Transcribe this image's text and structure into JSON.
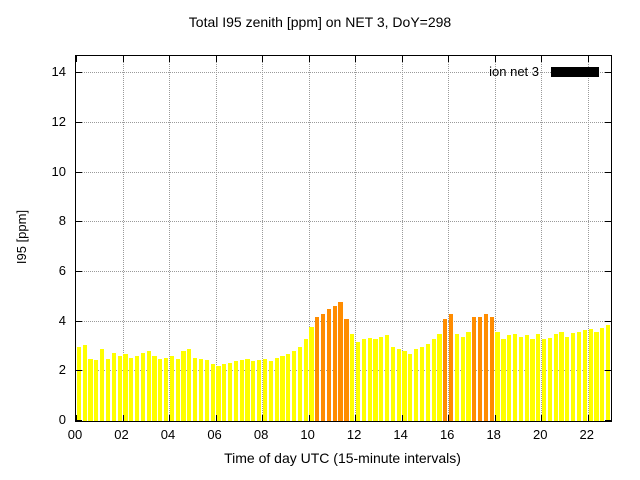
{
  "chart_data": {
    "type": "bar",
    "title": "Total I95 zenith [ppm] on NET 3, DoY=298",
    "xlabel": "Time of day UTC (15-minute intervals)",
    "ylabel": "I95 [ppm]",
    "legend_label": "ion net 3",
    "legend_swatch_color": "#000000",
    "xlim": [
      0,
      23
    ],
    "ylim": [
      0,
      14.7
    ],
    "xticks": {
      "positions": [
        0,
        2,
        4,
        6,
        8,
        10,
        12,
        14,
        16,
        18,
        20,
        22
      ],
      "labels": [
        "00",
        "02",
        "04",
        "06",
        "08",
        "10",
        "12",
        "14",
        "16",
        "18",
        "20",
        "22"
      ]
    },
    "yticks": [
      0,
      2,
      4,
      6,
      8,
      10,
      12,
      14
    ],
    "interval_hours": 0.25,
    "grid": true,
    "legend_position": "top-right",
    "colors": {
      "yellow": "#ffff00",
      "orange": "#ff8c00"
    },
    "orange_threshold": 4.0,
    "values": [
      3.0,
      3.05,
      2.5,
      2.45,
      2.9,
      2.5,
      2.75,
      2.6,
      2.7,
      2.55,
      2.6,
      2.75,
      2.8,
      2.6,
      2.5,
      2.55,
      2.6,
      2.5,
      2.8,
      2.9,
      2.55,
      2.5,
      2.45,
      2.3,
      2.2,
      2.3,
      2.35,
      2.4,
      2.45,
      2.5,
      2.4,
      2.45,
      2.5,
      2.4,
      2.55,
      2.6,
      2.7,
      2.8,
      3.0,
      3.3,
      3.8,
      4.2,
      4.3,
      4.5,
      4.65,
      4.8,
      4.1,
      3.5,
      3.2,
      3.3,
      3.35,
      3.3,
      3.4,
      3.45,
      3.0,
      2.9,
      2.8,
      2.7,
      2.9,
      3.0,
      3.1,
      3.3,
      3.5,
      4.1,
      4.3,
      3.5,
      3.4,
      3.6,
      4.2,
      4.2,
      4.3,
      4.2,
      3.6,
      3.3,
      3.45,
      3.5,
      3.4,
      3.45,
      3.3,
      3.5,
      3.3,
      3.35,
      3.5,
      3.6,
      3.4,
      3.55,
      3.6,
      3.65,
      3.7,
      3.6,
      3.75,
      3.85
    ]
  }
}
